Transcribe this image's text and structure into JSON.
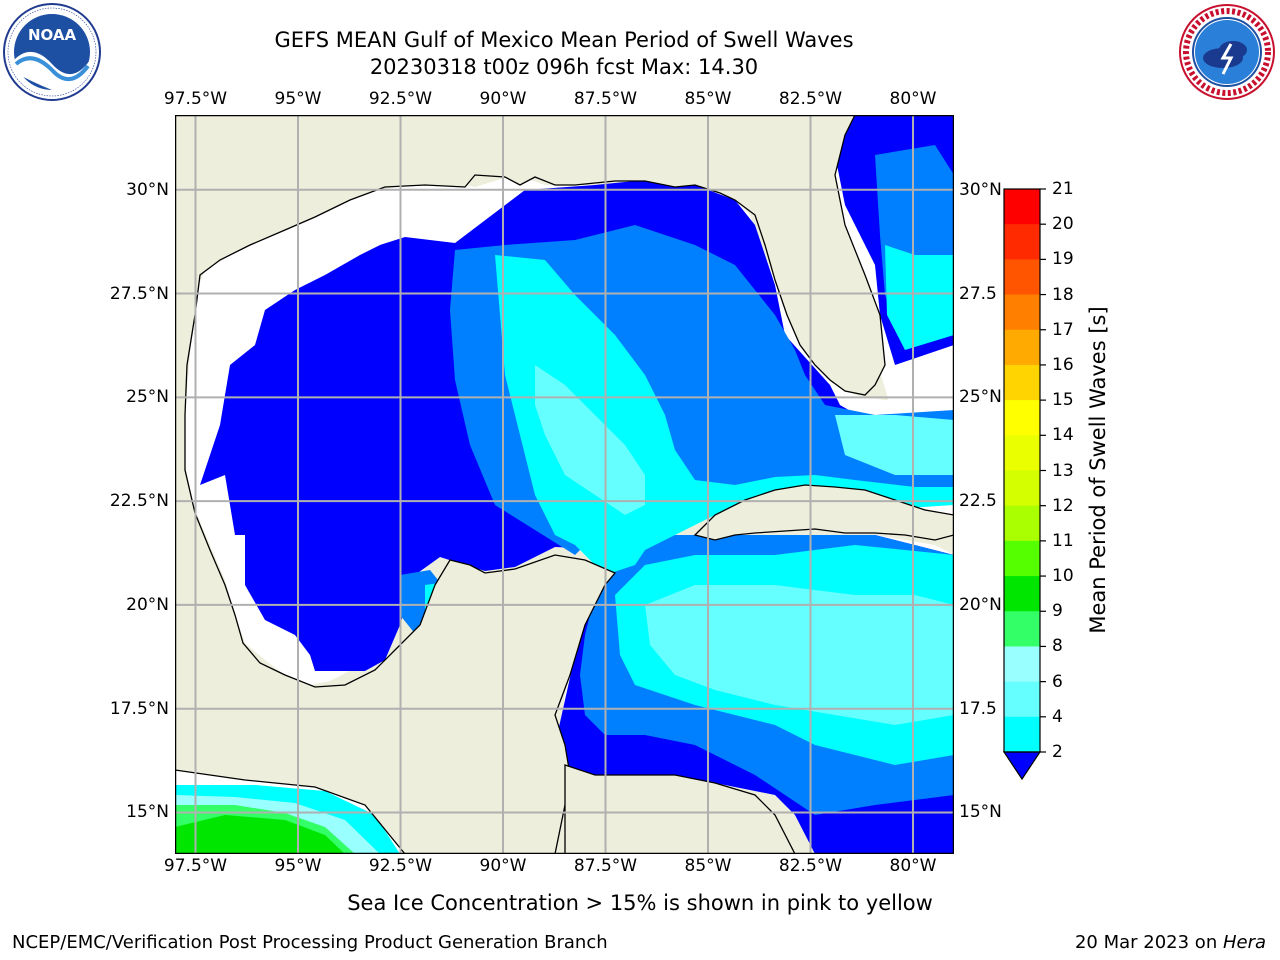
{
  "header": {
    "title_line1": "GEFS MEAN Gulf of Mexico Mean Period of Swell Waves",
    "title_line2": "20230318 t00z 096h fcst   Max: 14.30"
  },
  "logos": {
    "noara_text": "NOAA",
    "noara_ring_text": "NATIONAL OCEANIC AND ATMOSPHERIC ADMINISTRATION · U.S. DEPARTMENT OF COMMERCE",
    "nws_ring_text": "NATIONAL WEATHER SERVICE"
  },
  "map": {
    "lon_labels": [
      "97.5°W",
      "95°W",
      "92.5°W",
      "90°W",
      "87.5°W",
      "85°W",
      "82.5°W",
      "80°W"
    ],
    "lat_labels_left": [
      "30°N",
      "27.5°N",
      "25°N",
      "22.5°N",
      "20°N",
      "17.5°N",
      "15°N"
    ],
    "lat_labels_right": [
      "30°N",
      "27.5",
      "25°N",
      "22.5",
      "20°N",
      "17.5",
      "15°N"
    ],
    "lon_range": [
      -98.0,
      -79.0
    ],
    "lat_range": [
      14.0,
      31.8
    ],
    "grid": true,
    "colors": {
      "land": "#eeeedd",
      "ocean_lt2": "#ffffff",
      "band_2_4": "#0000ff",
      "band_4_6": "#0080ff",
      "band_6_8": "#00ffff",
      "band_8_9": "#66ffff",
      "band_9_10": "#99ffff",
      "band_10_11": "#33ff66",
      "band_11_12": "#00e600"
    }
  },
  "colorbar": {
    "label": "Mean Period of Swell Waves [s]",
    "ticks": [
      "21",
      "20",
      "19",
      "18",
      "17",
      "16",
      "15",
      "14",
      "13",
      "12",
      "11",
      "10",
      "9",
      "8",
      "6",
      "4",
      "2"
    ],
    "colors": [
      "#ff0000",
      "#ff2a00",
      "#ff5500",
      "#ff8000",
      "#ffaa00",
      "#ffd400",
      "#ffff00",
      "#eaff00",
      "#d4ff00",
      "#aaff00",
      "#55ff00",
      "#00e600",
      "#33ff66",
      "#99ffff",
      "#66ffff",
      "#00ffff",
      "#0080ff",
      "#0000ff"
    ]
  },
  "note": "Sea Ice Concentration > 15% is shown in pink to yellow",
  "footer": {
    "left": "NCEP/EMC/Verification Post Processing Product Generation Branch",
    "date": "20 Mar 2023 on ",
    "machine": "Hera"
  }
}
